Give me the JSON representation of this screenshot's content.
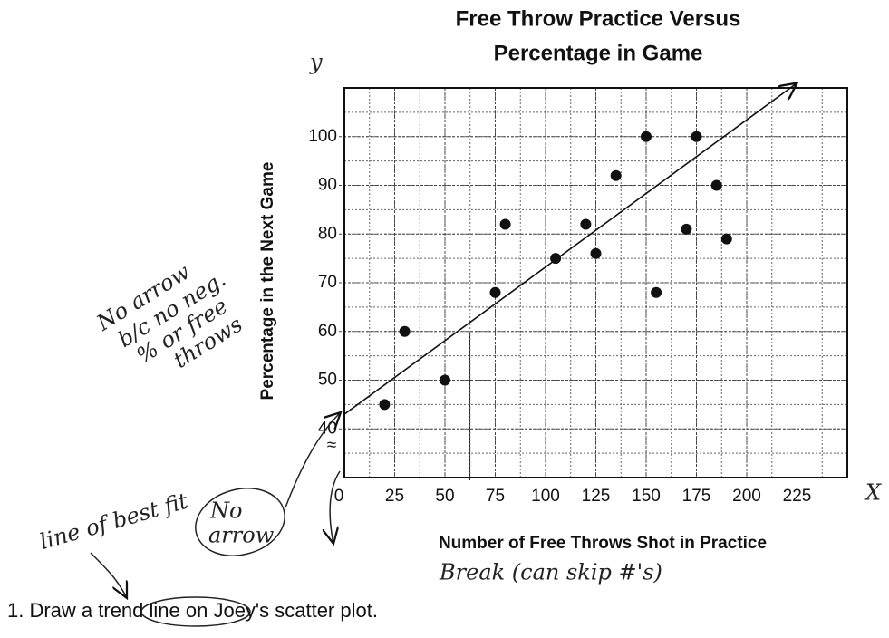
{
  "chart_data": {
    "type": "scatter",
    "title": "Free Throw Practice Versus",
    "subtitle": "Percentage in Game",
    "x_label": "Number of Free Throws Shot in Practice",
    "y_label": "Percentage in the Next Game",
    "x": [
      20,
      30,
      50,
      75,
      80,
      105,
      120,
      125,
      135,
      150,
      155,
      170,
      175,
      185,
      190
    ],
    "values": [
      45,
      60,
      50,
      68,
      82,
      75,
      82,
      76,
      92,
      100,
      68,
      81,
      100,
      90,
      79
    ],
    "color": "#111111",
    "xlim": [
      0,
      250
    ],
    "ylim": [
      30,
      110
    ],
    "xticks": [
      0,
      25,
      50,
      75,
      100,
      125,
      150,
      175,
      200,
      225
    ],
    "yticks": [
      40,
      50,
      60,
      70,
      80,
      90,
      100
    ],
    "grid": true,
    "axis_break": "≈",
    "trend_line": {
      "x": [
        0,
        225
      ],
      "y": [
        43,
        111
      ]
    },
    "annotations": {
      "y_axis": "y",
      "x_axis": "X",
      "no_arrow_note": [
        "No arrow",
        "b/c no neg.",
        "% or free",
        "throws"
      ],
      "line_of_best_fit": "line of best fit",
      "no_arrow": [
        "No",
        "arrow"
      ],
      "break_note": "Break (can skip #'s)"
    },
    "prompt": "1. Draw a trend line on Joey's scatter plot."
  }
}
